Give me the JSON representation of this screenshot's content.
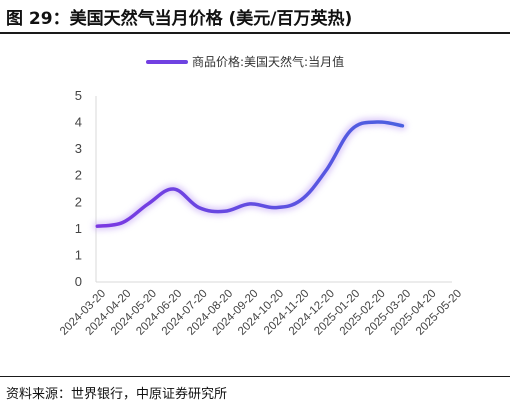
{
  "header": {
    "title": "图 29：美国天然气当月价格 (美元/百万英热)"
  },
  "footer": {
    "source": "资料来源：世界银行，中原证券研究所"
  },
  "chart_data": {
    "type": "line",
    "x": [
      "2024-03-20",
      "2024-04-20",
      "2024-05-20",
      "2024-06-20",
      "2024-07-20",
      "2024-08-20",
      "2024-09-20",
      "2024-10-20",
      "2024-11-20",
      "2024-12-20",
      "2025-01-20",
      "2025-02-20",
      "2025-03-20",
      "2025-04-20",
      "2025-05-20"
    ],
    "series": [
      {
        "name": "商品价格:美国天然气:当月值",
        "values": [
          1.5,
          1.6,
          2.1,
          2.5,
          2.0,
          1.9,
          2.1,
          2.0,
          2.2,
          3.0,
          4.1,
          4.3,
          4.2,
          null,
          null
        ]
      }
    ],
    "y_ticks": [
      "5",
      "4",
      "3",
      "2",
      "2",
      "1",
      "1",
      "0"
    ],
    "ylim": [
      0,
      5
    ],
    "grid": false,
    "legend_position": "top-center",
    "colors": {
      "line_start": "#8a2be2",
      "line_end": "#3a6fe0",
      "glow": "#c4a7f5"
    }
  }
}
